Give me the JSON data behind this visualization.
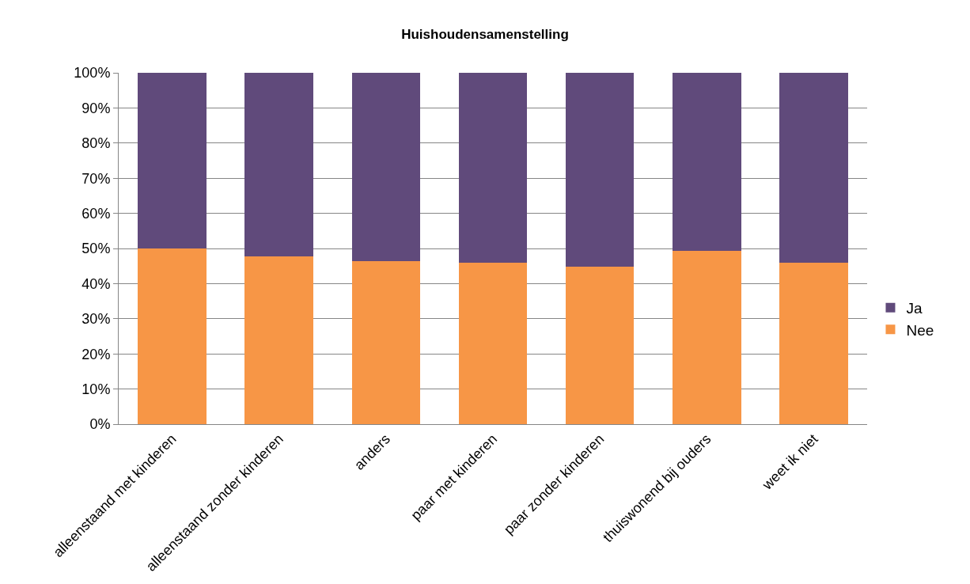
{
  "chart_data": {
    "type": "bar",
    "title": "Huishoudensamenstelling",
    "stacked": true,
    "categories": [
      "alleenstaand met kinderen",
      "alleenstaand zonder kinderen",
      "anders",
      "paar met kinderen",
      "paar zonder kinderen",
      "thuiswonend bij ouders",
      "weet ik niet"
    ],
    "series": [
      {
        "name": "Nee",
        "color": "#f79646",
        "values": [
          50.0,
          47.8,
          46.5,
          46.0,
          44.8,
          49.3,
          46.0
        ]
      },
      {
        "name": "Ja",
        "color": "#604a7b",
        "values": [
          50.0,
          52.2,
          53.5,
          54.0,
          55.2,
          50.7,
          54.0
        ]
      }
    ],
    "ylim": [
      0,
      100
    ],
    "yticks": [
      {
        "value": 0,
        "label": "0%"
      },
      {
        "value": 10,
        "label": "10%"
      },
      {
        "value": 20,
        "label": "20%"
      },
      {
        "value": 30,
        "label": "30%"
      },
      {
        "value": 40,
        "label": "40%"
      },
      {
        "value": 50,
        "label": "50%"
      },
      {
        "value": 60,
        "label": "60%"
      },
      {
        "value": 70,
        "label": "70%"
      },
      {
        "value": 80,
        "label": "80%"
      },
      {
        "value": 90,
        "label": "90%"
      },
      {
        "value": 100,
        "label": "100%"
      }
    ],
    "grid": "y",
    "legend": "right"
  }
}
